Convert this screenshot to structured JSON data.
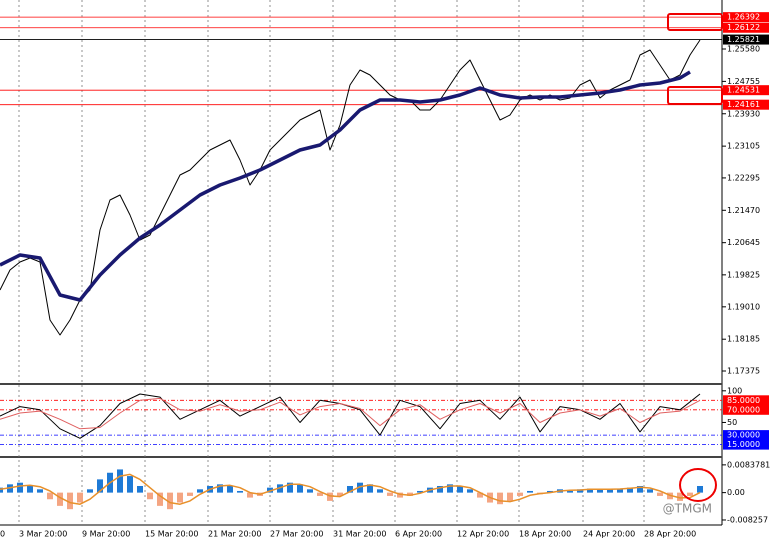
{
  "chart_data": [
    {
      "type": "line",
      "series": [
        {
          "color": "#000000",
          "values": [
            1.19438,
            1.19948,
            1.20152,
            1.20254,
            1.20152,
            1.18674,
            1.18292,
            1.18674,
            1.19183,
            1.19438,
            1.20967,
            1.21732,
            1.21859,
            1.2135,
            1.20712,
            1.2084,
            1.2135,
            1.21859,
            1.22369,
            1.22496,
            1.22751,
            1.23006,
            1.23134,
            1.23261,
            1.22751,
            1.22114,
            1.22496,
            1.23006,
            1.23261,
            1.23516,
            1.23771,
            1.23898,
            1.24025,
            1.23006,
            1.23643,
            1.24663,
            1.25045,
            1.24917,
            1.24663,
            1.24408,
            1.2428,
            1.2428,
            1.24025,
            1.24025,
            1.2428,
            1.24663,
            1.25045,
            1.253,
            1.2479,
            1.2428,
            1.23771,
            1.23898,
            1.2428,
            1.24408,
            1.2428,
            1.24408,
            1.2428,
            1.24331,
            1.24663,
            1.2479,
            1.24331,
            1.24535,
            1.24663,
            1.2479,
            1.25427,
            1.25555,
            1.25172,
            1.2479,
            1.24917,
            1.25427,
            1.25809
          ]
        },
        {
          "color": "#191970",
          "x": [
            0,
            2,
            4,
            6,
            8,
            10,
            12,
            14,
            16,
            18,
            20,
            22,
            24,
            26,
            28,
            30,
            32,
            34,
            36,
            38,
            40,
            42,
            44,
            46,
            48,
            50,
            52,
            54,
            56,
            58,
            60,
            62,
            64,
            66,
            68,
            69
          ],
          "values": [
            1.20075,
            1.2033,
            1.20254,
            1.19311,
            1.19183,
            1.19821,
            1.2033,
            1.20763,
            1.21095,
            1.21477,
            1.21859,
            1.22114,
            1.22293,
            1.22496,
            1.22751,
            1.23006,
            1.23134,
            1.23516,
            1.24025,
            1.2428,
            1.2428,
            1.24229,
            1.2428,
            1.24408,
            1.24586,
            1.24408,
            1.24331,
            1.24357,
            1.24357,
            1.24408,
            1.24459,
            1.24535,
            1.24663,
            1.24714,
            1.24841,
            1.24994
          ]
        }
      ],
      "xlim": [
        0,
        72.2
      ],
      "xticks": [
        {
          "value": -4.3,
          "label": "0"
        },
        {
          "value": 1.9,
          "label": "3 Mar 20:00"
        },
        {
          "value": 8.2,
          "label": "9 Mar 20:00"
        },
        {
          "value": 14.5,
          "label": "15 Mar 20:00"
        },
        {
          "value": 20.8,
          "label": "21 Mar 20:00"
        },
        {
          "value": 27.0,
          "label": "27 Mar 20:00"
        },
        {
          "value": 33.3,
          "label": "31 Mar 20:00"
        },
        {
          "value": 39.5,
          "label": "6 Apr 20:00"
        },
        {
          "value": 45.7,
          "label": "12 Apr 20:00"
        },
        {
          "value": 51.9,
          "label": "18 Apr 20:00"
        },
        {
          "value": 58.3,
          "label": "24 Apr 20:00"
        },
        {
          "value": 64.4,
          "label": "28 Apr 20:00"
        }
      ],
      "ylim": [
        1.17069,
        1.26574
      ],
      "yticks": [
        {
          "value": 1.2558,
          "label": "1.25580"
        },
        {
          "value": 1.24755,
          "label": "1.24755"
        },
        {
          "value": 1.2393,
          "label": "1.23930"
        },
        {
          "value": 1.23105,
          "label": "1.23105"
        },
        {
          "value": 1.22295,
          "label": "1.22295"
        },
        {
          "value": 1.2147,
          "label": "1.21470"
        },
        {
          "value": 1.20645,
          "label": "1.20645"
        },
        {
          "value": 1.19825,
          "label": "1.19825"
        },
        {
          "value": 1.1901,
          "label": "1.19010"
        },
        {
          "value": 1.18185,
          "label": "1.18185"
        },
        {
          "value": 1.17375,
          "label": "1.17375"
        }
      ],
      "levels": [
        {
          "value": 1.26392,
          "label": "1.26392",
          "color": "#ff0000"
        },
        {
          "value": 1.26122,
          "label": "1.26122",
          "color": "#ff0000"
        },
        {
          "value": 1.25821,
          "label": "1.25821",
          "color": "#000000"
        },
        {
          "value": 1.24531,
          "label": "1.24531",
          "color": "#ff0000"
        },
        {
          "value": 1.24161,
          "label": "1.24161",
          "color": "#ff0000"
        }
      ],
      "grid": true
    },
    {
      "type": "line",
      "series": [
        {
          "color": "#000000",
          "x": [
            0,
            2,
            4,
            6,
            8,
            10,
            12,
            14,
            16,
            18,
            20,
            22,
            24,
            26,
            28,
            30,
            32,
            34,
            36,
            38,
            40,
            42,
            44,
            46,
            48,
            50,
            52,
            54,
            56,
            58,
            60,
            62,
            64,
            66,
            68,
            70
          ],
          "values": [
            60,
            75,
            70,
            40,
            25,
            45,
            80,
            95,
            90,
            55,
            70,
            85,
            60,
            75,
            90,
            50,
            85,
            80,
            70,
            30,
            85,
            75,
            40,
            80,
            85,
            55,
            90,
            35,
            75,
            70,
            55,
            80,
            35,
            75,
            70,
            95
          ]
        },
        {
          "color": "#e06060",
          "x": [
            0,
            2,
            4,
            6,
            8,
            10,
            12,
            14,
            16,
            18,
            20,
            22,
            24,
            26,
            28,
            30,
            32,
            34,
            36,
            38,
            40,
            42,
            44,
            46,
            48,
            50,
            52,
            54,
            56,
            58,
            60,
            62,
            64,
            66,
            68,
            70
          ],
          "values": [
            55,
            65,
            68,
            55,
            40,
            42,
            65,
            85,
            88,
            70,
            68,
            78,
            68,
            70,
            82,
            62,
            75,
            80,
            72,
            45,
            70,
            78,
            55,
            70,
            80,
            65,
            80,
            50,
            65,
            70,
            60,
            72,
            50,
            65,
            68,
            85
          ]
        }
      ],
      "ylim": [
        -3,
        107.6
      ],
      "yticks": [
        100,
        50
      ],
      "levels": [
        {
          "value": 85,
          "label": "85.0000",
          "color": "#ff0000"
        },
        {
          "value": 70,
          "label": "70.0000",
          "color": "#ff0000"
        },
        {
          "value": 30,
          "label": "30.0000",
          "color": "#0000ff"
        },
        {
          "value": 15,
          "label": "15.0000",
          "color": "#0000ff"
        }
      ]
    },
    {
      "type": "macd",
      "values": [
        0.0015,
        0.0025,
        0.003,
        0.002,
        0.001,
        -0.002,
        -0.004,
        -0.005,
        -0.003,
        0.001,
        0.004,
        0.006,
        0.007,
        0.005,
        0.002,
        -0.002,
        -0.004,
        -0.005,
        -0.003,
        -0.001,
        0.001,
        0.002,
        0.0025,
        0.002,
        0.0005,
        -0.0015,
        -0.001,
        0.0015,
        0.0025,
        0.003,
        0.0025,
        0.001,
        -0.001,
        -0.0025,
        -0.001,
        0.002,
        0.003,
        0.0025,
        0.001,
        -0.001,
        -0.0015,
        -0.001,
        0.0005,
        0.0015,
        0.002,
        0.0025,
        0.002,
        0.001,
        -0.0015,
        -0.003,
        -0.0035,
        -0.0025,
        -0.001,
        0.0005,
        -0.0005,
        0.0005,
        0.001,
        0.0005,
        0.001,
        0.0012,
        0.0008,
        0.001,
        0.0012,
        0.0015,
        0.002,
        0.001,
        -0.001,
        -0.002,
        -0.0025,
        -0.001,
        0.002
      ],
      "pos_color": "#1e7ad6",
      "neg_color": "#f4a582",
      "signal": {
        "color": "#e8902a",
        "values": [
          0.001,
          0.0015,
          0.002,
          0.0022,
          0.0018,
          0.0005,
          -0.0015,
          -0.003,
          -0.0035,
          -0.002,
          0.0005,
          0.003,
          0.005,
          0.0055,
          0.004,
          0.0015,
          -0.001,
          -0.003,
          -0.0035,
          -0.0025,
          -0.0005,
          0.001,
          0.002,
          0.0022,
          0.0015,
          0,
          -0.0005,
          0.0005,
          0.0015,
          0.0025,
          0.0025,
          0.0018,
          0.0003,
          -0.001,
          -0.0012,
          0.0003,
          0.0018,
          0.0023,
          0.0018,
          0.0005,
          -0.0005,
          -0.0008,
          -0.0002,
          0.0008,
          0.0015,
          0.002,
          0.002,
          0.0015,
          0,
          -0.0015,
          -0.0025,
          -0.0027,
          -0.002,
          -0.0008,
          -0.0003,
          0,
          0.0005,
          0.0007,
          0.0008,
          0.001,
          0.001,
          0.001,
          0.0011,
          0.0013,
          0.0016,
          0.0014,
          0.0005,
          -0.0008,
          -0.0016,
          -0.0015,
          0
        ]
      },
      "ylim": [
        -0.00917,
        0.01015
      ],
      "yticks": [
        0.0083781,
        {
          "value": 0,
          "label": "0.00"
        },
        -0.008257
      ]
    }
  ],
  "watermark": "@TMGM"
}
